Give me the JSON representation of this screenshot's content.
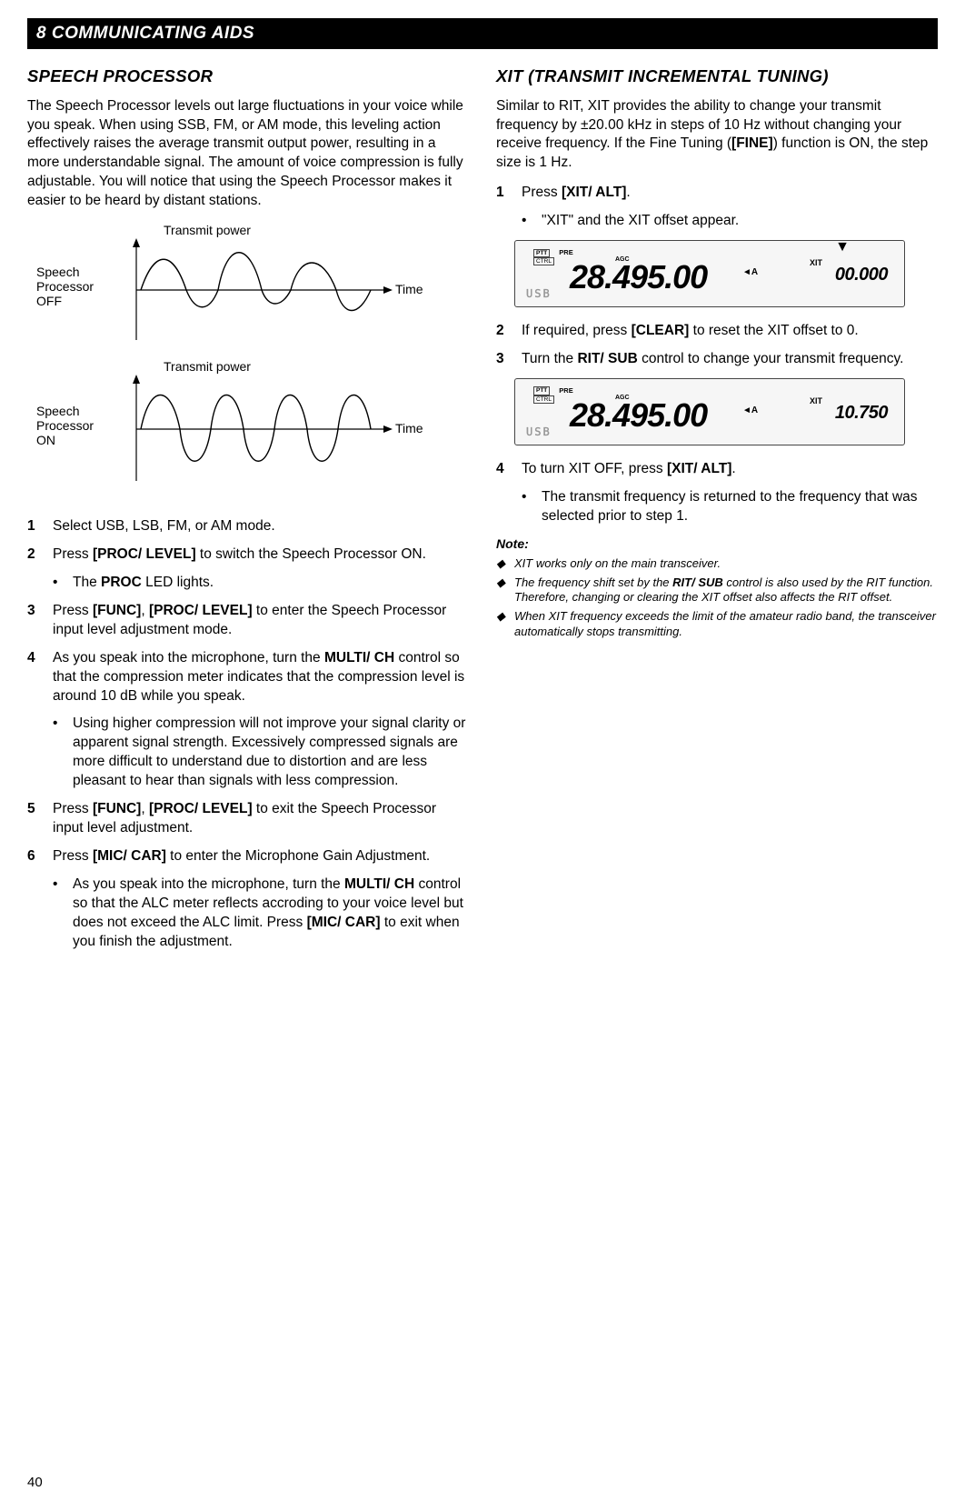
{
  "chapter": "8  COMMUNICATING AIDS",
  "pageNumber": "40",
  "left": {
    "title": "SPEECH PROCESSOR",
    "intro": "The Speech Processor levels out large fluctuations in your voice while you speak.  When using SSB, FM, or AM mode, this leveling action effectively raises the average transmit output power, resulting in a more understandable signal.  The amount of voice compression is fully adjustable.  You will notice that using the Speech Processor makes it easier to be heard by distant stations.",
    "diagram": {
      "labelTransmitPower": "Transmit power",
      "labelTime": "Time",
      "speechOff": "Speech\nProcessor\nOFF",
      "speechOn": "Speech\nProcessor\nON",
      "axisColor": "#000000",
      "waveColor": "#000000",
      "bgColor": "#ffffff"
    },
    "steps": [
      {
        "num": "1",
        "text": "Select USB, LSB, FM, or AM mode."
      },
      {
        "num": "2",
        "prefix": "Press ",
        "bold": "[PROC/ LEVEL]",
        "suffix": " to switch the Speech Processor ON.",
        "bullets": [
          {
            "prefix": "The ",
            "bold": "PROC",
            "suffix": " LED lights."
          }
        ]
      },
      {
        "num": "3",
        "prefix": "Press ",
        "bold": "[FUNC]",
        "mid": ", ",
        "bold2": "[PROC/ LEVEL]",
        "suffix": " to enter the Speech Processor input level adjustment mode."
      },
      {
        "num": "4",
        "prefix": "As you speak into the microphone, turn the ",
        "bold": "MULTI/ CH",
        "suffix": " control so that the compression meter indicates that the compression level is around 10 dB while you speak.",
        "bullets": [
          {
            "text": "Using higher compression will not improve your signal clarity or apparent signal strength.  Excessively compressed signals are more difficult to understand due to distortion and are less pleasant to hear than signals with less compression."
          }
        ]
      },
      {
        "num": "5",
        "prefix": "Press ",
        "bold": "[FUNC]",
        "mid": ", ",
        "bold2": "[PROC/ LEVEL]",
        "suffix": " to exit the Speech Processor input level adjustment."
      },
      {
        "num": "6",
        "prefix": "Press ",
        "bold": "[MIC/ CAR]",
        "suffix": " to enter the Microphone Gain Adjustment.",
        "bullets": [
          {
            "prefix": "As you speak into the microphone, turn the ",
            "bold": "MULTI/ CH",
            "suffix": " control so that the ALC meter reflects accroding to your voice level but does not exceed the ALC limit.  Press ",
            "bold2": "[MIC/ CAR]",
            "suffix2": " to exit when you finish the adjustment."
          }
        ]
      }
    ]
  },
  "right": {
    "title": "XIT (TRANSMIT INCREMENTAL TUNING)",
    "intro_pre": "Similar to RIT, XIT provides the ability to change your transmit frequency by ±20.00 kHz in steps of 10 Hz without changing your receive frequency.  If the Fine Tuning (",
    "intro_bold": "[FINE]",
    "intro_post": ") function is ON, the step size is 1 Hz.",
    "steps": [
      {
        "num": "1",
        "prefix": "Press ",
        "bold": "[XIT/ ALT]",
        "suffix": ".",
        "bullets": [
          {
            "text": "\"XIT\" and the XIT offset appear."
          }
        ],
        "display": {
          "freq": "28.495.00",
          "xitLabel": "XIT",
          "xitVal": "00.000",
          "usb": "USB",
          "arrow": "▼",
          "sup": "◄A",
          "pre": "PRE",
          "agc": "AGC",
          "ptt": "PTT",
          "ctrl": "CTRL"
        }
      },
      {
        "num": "2",
        "prefix": "If required, press ",
        "bold": "[CLEAR]",
        "suffix": " to reset the XIT offset to 0."
      },
      {
        "num": "3",
        "prefix": "Turn the ",
        "bold": "RIT/ SUB",
        "suffix": " control to change your transmit frequency.",
        "display": {
          "freq": "28.495.00",
          "xitLabel": "XIT",
          "xitVal": "10.750",
          "usb": "USB",
          "sup": "◄A",
          "pre": "PRE",
          "agc": "AGC",
          "ptt": "PTT",
          "ctrl": "CTRL"
        }
      },
      {
        "num": "4",
        "prefix": "To turn XIT OFF, press ",
        "bold": "[XIT/ ALT]",
        "suffix": ".",
        "bullets": [
          {
            "text": "The transmit frequency is returned to the frequency that was selected prior to step 1."
          }
        ]
      }
    ],
    "noteLabel": "Note:",
    "notes": [
      "XIT works only on the main transceiver.",
      "The frequency shift set by the <b>RIT/ SUB</b> control is also used by the RIT function.  Therefore, changing or clearing the XIT offset also affects the RIT offset.",
      "When XIT frequency exceeds the limit of the amateur radio band, the transceiver automatically stops transmitting."
    ]
  }
}
